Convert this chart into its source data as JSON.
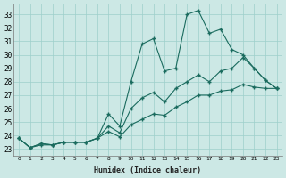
{
  "xlabel": "Humidex (Indice chaleur)",
  "bg_color": "#cce8e5",
  "grid_color": "#9dcfcb",
  "line_color": "#1a6b5e",
  "xlim": [
    -0.5,
    23.5
  ],
  "ylim": [
    22.5,
    33.8
  ],
  "xticks": [
    0,
    1,
    2,
    3,
    4,
    5,
    6,
    7,
    8,
    9,
    10,
    11,
    12,
    13,
    14,
    15,
    16,
    17,
    18,
    19,
    20,
    21,
    22,
    23
  ],
  "yticks": [
    23,
    24,
    25,
    26,
    27,
    28,
    29,
    30,
    31,
    32,
    33
  ],
  "series1": [
    23.8,
    23.1,
    23.4,
    23.3,
    23.5,
    23.5,
    23.5,
    23.8,
    25.6,
    24.7,
    28.0,
    30.8,
    31.2,
    28.8,
    29.0,
    33.0,
    33.3,
    31.6,
    31.9,
    30.4,
    30.0,
    29.0,
    28.1,
    27.5
  ],
  "series2": [
    23.8,
    23.1,
    23.4,
    23.3,
    23.5,
    23.5,
    23.5,
    23.8,
    24.7,
    24.2,
    26.0,
    26.8,
    27.2,
    26.5,
    27.5,
    28.0,
    28.5,
    28.0,
    28.8,
    29.0,
    29.8,
    29.0,
    28.1,
    27.5
  ],
  "series3": [
    23.8,
    23.1,
    23.3,
    23.3,
    23.5,
    23.5,
    23.5,
    23.8,
    24.3,
    23.9,
    24.8,
    25.2,
    25.6,
    25.5,
    26.1,
    26.5,
    27.0,
    27.0,
    27.3,
    27.4,
    27.8,
    27.6,
    27.5,
    27.5
  ]
}
